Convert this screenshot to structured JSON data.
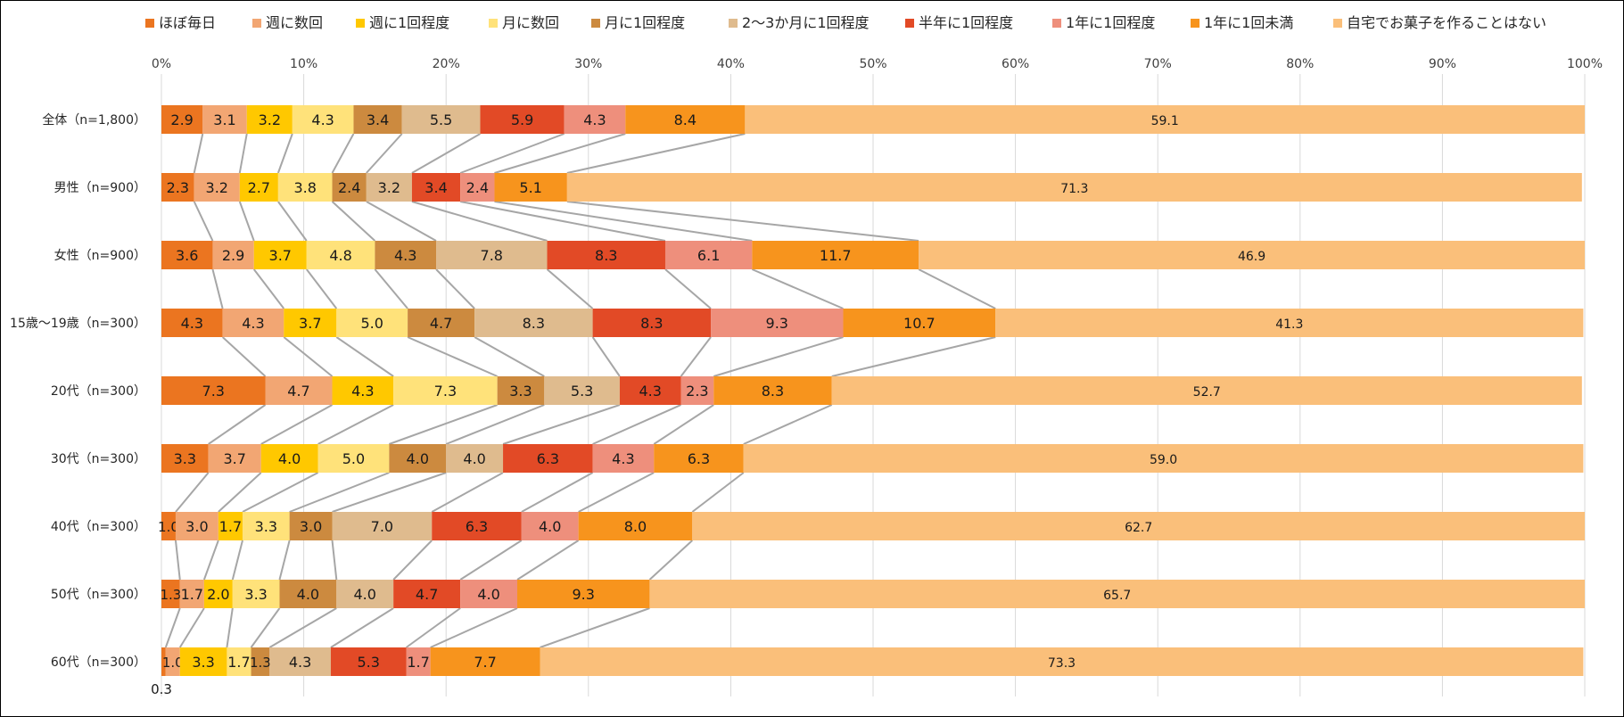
{
  "chart_data": {
    "type": "stacked-bar-horizontal-100",
    "xlim": [
      0,
      100
    ],
    "ticks": [
      "0%",
      "10%",
      "20%",
      "30%",
      "40%",
      "50%",
      "60%",
      "70%",
      "80%",
      "90%",
      "100%"
    ],
    "legend_position": "top",
    "grid": true,
    "series": [
      {
        "name": "ほぼ毎日",
        "color": "#EB7520"
      },
      {
        "name": "週に数回",
        "color": "#F2A673"
      },
      {
        "name": "週に1回程度",
        "color": "#FFC800"
      },
      {
        "name": "月に数回",
        "color": "#FFE27A"
      },
      {
        "name": "月に1回程度",
        "color": "#CC8A3F"
      },
      {
        "name": "2～3か月に1回程度",
        "color": "#DFBB8E"
      },
      {
        "name": "半年に1回程度",
        "color": "#E24A26"
      },
      {
        "name": "1年に1回程度",
        "color": "#EE8F7C"
      },
      {
        "name": "1年に1回未満",
        "color": "#F7941D"
      },
      {
        "name": "自宅でお菓子を作ることはない",
        "color": "#FABF7A"
      }
    ],
    "categories": [
      {
        "label": "全体（n=1,800）",
        "values": [
          2.9,
          3.1,
          3.2,
          4.3,
          3.4,
          5.5,
          5.9,
          4.3,
          8.4,
          59.1
        ]
      },
      {
        "label": "男性（n=900）",
        "values": [
          2.3,
          3.2,
          2.7,
          3.8,
          2.4,
          3.2,
          3.4,
          2.4,
          5.1,
          71.3
        ]
      },
      {
        "label": "女性（n=900）",
        "values": [
          3.6,
          2.9,
          3.7,
          4.8,
          4.3,
          7.8,
          8.3,
          6.1,
          11.7,
          46.9
        ]
      },
      {
        "label": "15歳～19歳（n=300）",
        "values": [
          4.3,
          4.3,
          3.7,
          5.0,
          4.7,
          8.3,
          8.3,
          9.3,
          10.7,
          41.3
        ]
      },
      {
        "label": "20代（n=300）",
        "values": [
          7.3,
          4.7,
          4.3,
          7.3,
          3.3,
          5.3,
          4.3,
          2.3,
          8.3,
          52.7
        ]
      },
      {
        "label": "30代（n=300）",
        "values": [
          3.3,
          3.7,
          4.0,
          5.0,
          4.0,
          4.0,
          6.3,
          4.3,
          6.3,
          59.0
        ]
      },
      {
        "label": "40代（n=300）",
        "values": [
          1.0,
          3.0,
          1.7,
          3.3,
          3.0,
          7.0,
          6.3,
          4.0,
          8.0,
          62.7
        ]
      },
      {
        "label": "50代（n=300）",
        "values": [
          1.3,
          1.7,
          2.0,
          3.3,
          4.0,
          4.0,
          4.7,
          4.0,
          9.3,
          65.7
        ]
      },
      {
        "label": "60代（n=300）",
        "values": [
          0.3,
          1.0,
          3.3,
          1.7,
          1.3,
          4.3,
          5.3,
          1.7,
          7.7,
          73.3
        ]
      }
    ],
    "label_texts": [
      [
        "2.9",
        "3.1",
        "3.2",
        "4.3",
        "3.4",
        "5.5",
        "5.9",
        "4.3",
        "8.4",
        "59.1"
      ],
      [
        "2.3",
        "3.2",
        "2.7",
        "3.8",
        "2.4",
        "3.2",
        "3.4",
        "2.4",
        "5.1",
        "71.3"
      ],
      [
        "3.6",
        "2.9",
        "3.7",
        "4.8",
        "4.3",
        "7.8",
        "8.3",
        "6.1",
        "11.7",
        "46.9"
      ],
      [
        "4.3",
        "4.3",
        "3.7",
        "5.0",
        "4.7",
        "8.3",
        "8.3",
        "9.3",
        "10.7",
        "41.3"
      ],
      [
        "7.3",
        "4.7",
        "4.3",
        "7.3",
        "3.3",
        "5.3",
        "4.3",
        "2.3",
        "8.3",
        "52.7"
      ],
      [
        "3.3",
        "3.7",
        "4.0",
        "5.0",
        "4.0",
        "4.0",
        "6.3",
        "4.3",
        "6.3",
        "59.0"
      ],
      [
        "1.0",
        "3.0",
        "1.7",
        "3.3",
        "3.0",
        "7.0",
        "6.3",
        "4.0",
        "8.0",
        "62.7"
      ],
      [
        "1.3",
        "1.7",
        "2.0",
        "3.3",
        "4.0",
        "4.0",
        "4.7",
        "4.0",
        "9.3",
        "65.7"
      ],
      [
        "0.3",
        "1.0",
        "3.3",
        "1.7",
        "1.3",
        "4.3",
        "5.3",
        "1.7",
        "7.7",
        "73.3"
      ]
    ]
  }
}
